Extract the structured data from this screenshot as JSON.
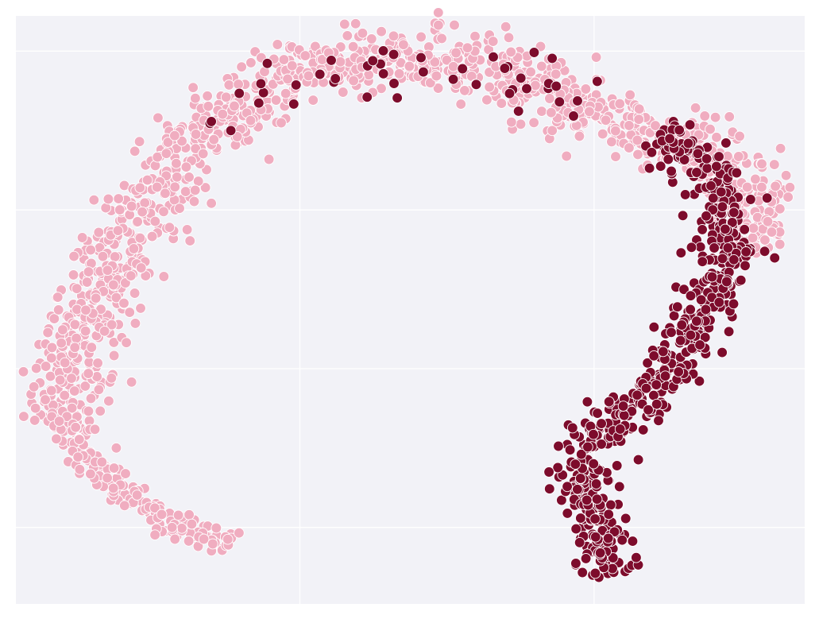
{
  "chart_data": {
    "type": "scatter",
    "title": "",
    "xlabel": "",
    "ylabel": "",
    "grid": true,
    "legend": "none",
    "xlim": [
      0,
      100
    ],
    "ylim": [
      0,
      100
    ],
    "colors": {
      "background": "#f2f2f7",
      "group_a": "#f0adc0",
      "group_b": "#7d0c2c",
      "grid": "#ffffff"
    },
    "groups": [
      {
        "color_key": "group_a",
        "ridge": [
          [
            5.5,
            30
          ],
          [
            6.5,
            36
          ],
          [
            8,
            43
          ],
          [
            10,
            50
          ],
          [
            12,
            56
          ],
          [
            14.5,
            63
          ],
          [
            17.5,
            70
          ],
          [
            21,
            76
          ],
          [
            25,
            81
          ],
          [
            29,
            85
          ],
          [
            33,
            88
          ],
          [
            37,
            90.5
          ],
          [
            41,
            92
          ],
          [
            45,
            92.5
          ],
          [
            50,
            92.5
          ],
          [
            55,
            92
          ],
          [
            60,
            90.5
          ],
          [
            64,
            89
          ],
          [
            68,
            87
          ],
          [
            72,
            84.5
          ],
          [
            76,
            81
          ],
          [
            81,
            80
          ],
          [
            86,
            78
          ],
          [
            90,
            76
          ],
          [
            93,
            72
          ],
          [
            94,
            67
          ],
          [
            93,
            61
          ]
        ],
        "tail": [
          [
            6,
            31
          ],
          [
            8.5,
            26
          ],
          [
            11.5,
            22
          ],
          [
            15,
            18
          ],
          [
            19,
            14.5
          ],
          [
            23,
            11.5
          ],
          [
            27,
            9.5
          ]
        ],
        "counts": {
          "ridge": 1250,
          "tail": 170
        },
        "spread": {
          "ridge": 5.0,
          "tail": 2.3
        }
      },
      {
        "color_key": "group_b",
        "ridge": [
          [
            74,
            5
          ],
          [
            75,
            10
          ],
          [
            74.5,
            15
          ],
          [
            71,
            21
          ],
          [
            73,
            27
          ],
          [
            76.5,
            32
          ],
          [
            80.5,
            36
          ],
          [
            83.5,
            42
          ],
          [
            86.5,
            48
          ],
          [
            88.5,
            53
          ],
          [
            89.5,
            59
          ],
          [
            90,
            65
          ],
          [
            89,
            71
          ],
          [
            86.5,
            76
          ],
          [
            82,
            80
          ]
        ],
        "counts": {
          "ridge": 600
        },
        "spread": {
          "ridge": 3.6
        },
        "scattered_on_arc": 45
      }
    ]
  }
}
